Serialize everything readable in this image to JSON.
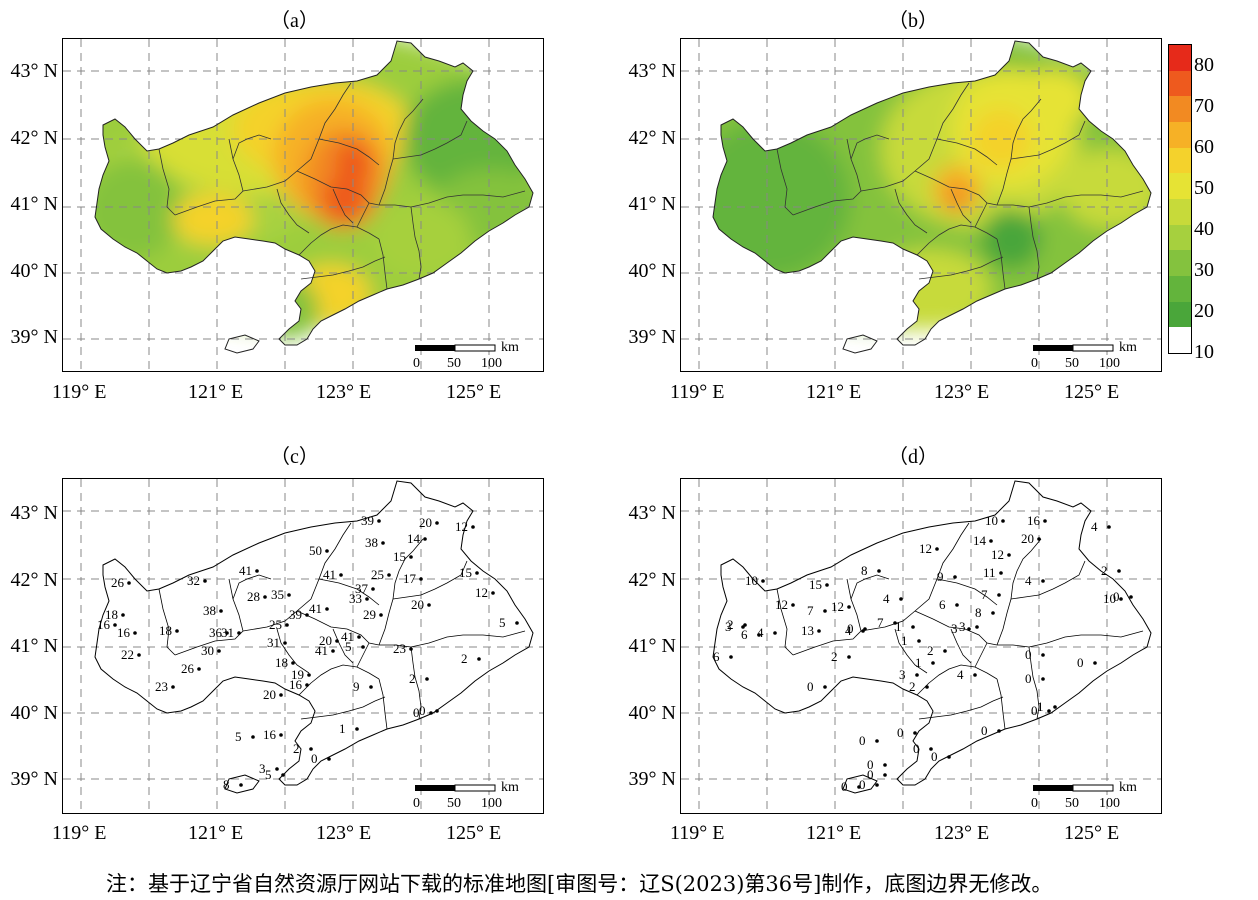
{
  "panels": [
    {
      "id": "a",
      "title": "（a）"
    },
    {
      "id": "b",
      "title": "（b）"
    },
    {
      "id": "c",
      "title": "（c）"
    },
    {
      "id": "d",
      "title": "（d）"
    }
  ],
  "lat_labels": [
    "43° N",
    "42° N",
    "41° N",
    "40° N",
    "39° N"
  ],
  "lon_labels": [
    "119° E",
    "121° E",
    "123° E",
    "125° E"
  ],
  "scalebar": {
    "unit": "km",
    "ticks": [
      "0",
      "50",
      "100"
    ]
  },
  "colorbar": {
    "labels": [
      "80",
      "70",
      "60",
      "50",
      "40",
      "30",
      "20",
      "10"
    ],
    "colors": [
      "#e62a1a",
      "#ee5a1e",
      "#f28a22",
      "#f6b126",
      "#f4d22c",
      "#e6e334",
      "#c7da3a",
      "#a6d03e",
      "#84c23e",
      "#63b43c",
      "#4aa63a",
      "#ffffff"
    ]
  },
  "stations_c": [
    "39",
    "20",
    "12",
    "14",
    "38",
    "50",
    "15",
    "41",
    "25",
    "15",
    "26",
    "32",
    "41",
    "17",
    "12",
    "28",
    "35",
    "37",
    "33",
    "20",
    "38",
    "41",
    "18",
    "39",
    "29",
    "16",
    "16",
    "18",
    "36",
    "31",
    "25",
    "41",
    "20",
    "5",
    "5",
    "22",
    "30",
    "31",
    "23",
    "41",
    "2",
    "26",
    "18",
    "19",
    "23",
    "16",
    "9",
    "2",
    "20",
    "0",
    "0",
    "16",
    "1",
    "5",
    "2",
    "0",
    "3",
    "5",
    "8"
  ],
  "stations_d": [
    "10",
    "16",
    "4",
    "20",
    "14",
    "12",
    "12",
    "8",
    "11",
    "9",
    "4",
    "2",
    "10",
    "15",
    "7",
    "4",
    "10",
    "0",
    "12",
    "12",
    "7",
    "6",
    "3",
    "8",
    "1",
    "0",
    "2",
    "6",
    "4",
    "13",
    "7",
    "4",
    "3",
    "3",
    "6",
    "1",
    "2",
    "2",
    "0",
    "1",
    "4",
    "3",
    "0",
    "2",
    "0",
    "0",
    "0",
    "1",
    "0",
    "0",
    "0",
    "0",
    "0",
    "0",
    "0",
    "0",
    "0"
  ],
  "footnote": "注：基于辽宁省自然资源厅网站下载的标准地图[审图号：辽S(2023)第36号]制作，底图边界无修改。"
}
